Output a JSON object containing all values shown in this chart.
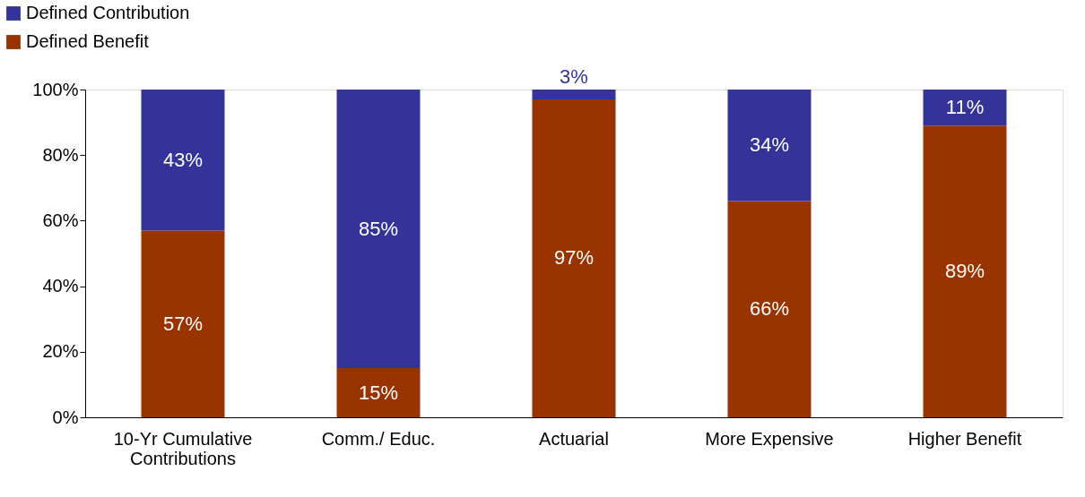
{
  "chart_data": {
    "type": "bar",
    "stacked": true,
    "categories": [
      "10-Yr Cumulative Contributions",
      "Comm./ Educ.",
      "Actuarial",
      "More Expensive",
      "Higher Benefit"
    ],
    "series": [
      {
        "name": "Defined Benefit",
        "color": "#993300",
        "values": [
          57,
          15,
          97,
          66,
          89
        ],
        "value_labels": [
          "57%",
          "15%",
          "97%",
          "66%",
          "89%"
        ]
      },
      {
        "name": "Defined Contribution",
        "color": "#333399",
        "values": [
          43,
          85,
          3,
          34,
          11
        ],
        "value_labels": [
          "43%",
          "85%",
          "3%",
          "34%",
          "11%"
        ]
      }
    ],
    "ylim": [
      0,
      100
    ],
    "yticks": [
      {
        "value": 0,
        "label": "0%"
      },
      {
        "value": 20,
        "label": "20%"
      },
      {
        "value": 40,
        "label": "40%"
      },
      {
        "value": 60,
        "label": "60%"
      },
      {
        "value": 80,
        "label": "80%"
      },
      {
        "value": 100,
        "label": "100%"
      }
    ],
    "grid": false,
    "legend": "top left"
  }
}
